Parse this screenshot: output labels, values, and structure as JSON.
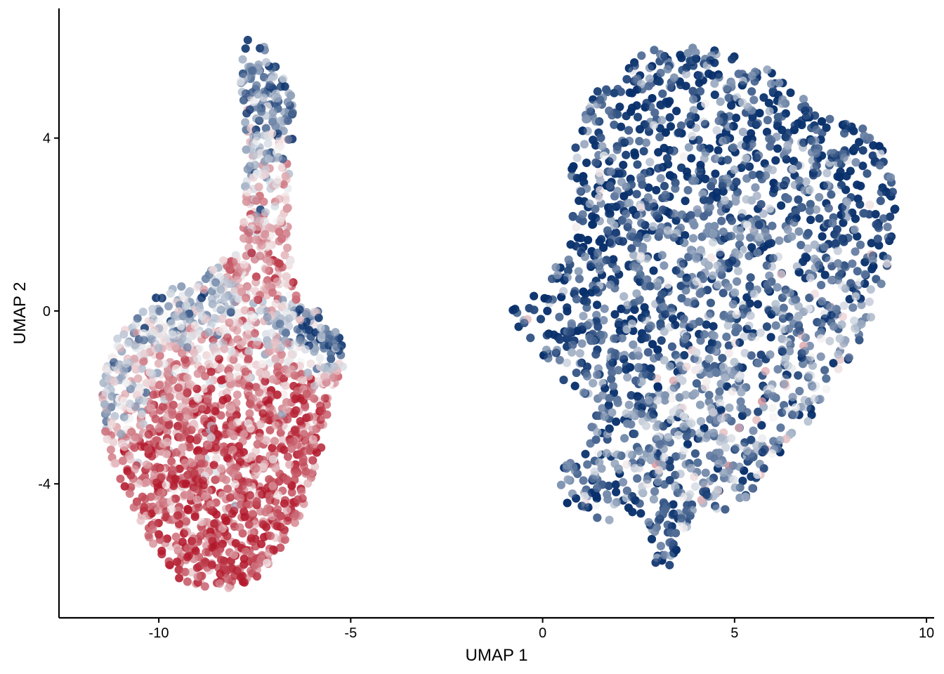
{
  "chart_data": {
    "type": "scatter",
    "title": "",
    "xlabel": "UMAP 1",
    "ylabel": "UMAP 2",
    "xlim": [
      -12.6,
      10.2
    ],
    "ylim": [
      -7.1,
      7.0
    ],
    "x_ticks": [
      -10,
      -5,
      0,
      5,
      10
    ],
    "x_tick_labels": [
      "-10",
      "-5",
      "0",
      "5",
      "10"
    ],
    "y_ticks": [
      -4,
      0,
      4
    ],
    "y_tick_labels": [
      "-4",
      "0",
      "4"
    ],
    "grid": false,
    "legend": "none",
    "point_alpha": 0.65,
    "color_scale": {
      "type": "diverging",
      "low": "#08306b",
      "mid": "#f7f7f7",
      "high": "#b2182b"
    },
    "clusters": [
      {
        "id": "left",
        "outline": [
          [
            -7.7,
            6.3
          ],
          [
            -7.3,
            6.2
          ],
          [
            -6.8,
            5.7
          ],
          [
            -6.5,
            4.9
          ],
          [
            -6.5,
            3.9
          ],
          [
            -6.6,
            2.8
          ],
          [
            -6.6,
            1.6
          ],
          [
            -6.5,
            0.8
          ],
          [
            -6.3,
            0.1
          ],
          [
            -5.8,
            0.0
          ],
          [
            -5.3,
            -0.5
          ],
          [
            -5.1,
            -1.2
          ],
          [
            -5.6,
            -2.1
          ],
          [
            -5.6,
            -2.6
          ],
          [
            -5.8,
            -3.4
          ],
          [
            -6.3,
            -4.7
          ],
          [
            -7.0,
            -5.8
          ],
          [
            -7.6,
            -6.3
          ],
          [
            -8.5,
            -6.5
          ],
          [
            -9.5,
            -6.2
          ],
          [
            -10.3,
            -5.2
          ],
          [
            -11.0,
            -4.0
          ],
          [
            -11.4,
            -2.9
          ],
          [
            -11.5,
            -1.6
          ],
          [
            -11.1,
            -0.6
          ],
          [
            -10.5,
            0.0
          ],
          [
            -9.8,
            0.5
          ],
          [
            -9.0,
            0.7
          ],
          [
            -8.3,
            1.2
          ],
          [
            -7.8,
            1.6
          ],
          [
            -7.8,
            2.5
          ],
          [
            -7.7,
            3.3
          ],
          [
            -7.8,
            4.5
          ],
          [
            -7.9,
            5.5
          ]
        ],
        "color_regions": [
          {
            "x": -7.2,
            "y": 5.4,
            "rx": 0.6,
            "ry": 1.0,
            "value": -0.7
          },
          {
            "x": -7.3,
            "y": 3.8,
            "rx": 0.6,
            "ry": 0.9,
            "value": -0.2
          },
          {
            "x": -7.0,
            "y": 2.2,
            "rx": 0.6,
            "ry": 0.8,
            "value": 0.3
          },
          {
            "x": -7.0,
            "y": 1.0,
            "rx": 0.6,
            "ry": 0.6,
            "value": 0.5
          },
          {
            "x": -9.8,
            "y": -0.2,
            "rx": 1.2,
            "ry": 0.6,
            "value": -0.4
          },
          {
            "x": -6.0,
            "y": -0.5,
            "rx": 0.8,
            "ry": 0.5,
            "value": -0.7
          },
          {
            "x": -11.0,
            "y": -1.6,
            "rx": 0.6,
            "ry": 0.9,
            "value": -0.2
          },
          {
            "x": -8.5,
            "y": -1.2,
            "rx": 1.6,
            "ry": 0.8,
            "value": 0.4
          },
          {
            "x": -8.3,
            "y": -3.0,
            "rx": 2.0,
            "ry": 1.1,
            "value": 0.65
          },
          {
            "x": -8.4,
            "y": -5.2,
            "rx": 1.4,
            "ry": 1.2,
            "value": 0.8
          }
        ]
      },
      {
        "id": "right",
        "outline": [
          [
            -1.0,
            0.0
          ],
          [
            -0.2,
            0.4
          ],
          [
            0.5,
            1.2
          ],
          [
            0.8,
            2.0
          ],
          [
            0.7,
            3.0
          ],
          [
            0.9,
            4.1
          ],
          [
            1.3,
            5.0
          ],
          [
            2.0,
            5.7
          ],
          [
            3.0,
            6.1
          ],
          [
            4.0,
            6.1
          ],
          [
            5.0,
            6.0
          ],
          [
            6.0,
            5.6
          ],
          [
            6.8,
            4.9
          ],
          [
            7.4,
            4.5
          ],
          [
            8.0,
            4.5
          ],
          [
            8.7,
            4.1
          ],
          [
            9.1,
            3.2
          ],
          [
            9.2,
            2.2
          ],
          [
            9.0,
            1.0
          ],
          [
            8.6,
            -0.2
          ],
          [
            7.8,
            -1.5
          ],
          [
            7.0,
            -2.5
          ],
          [
            6.2,
            -3.3
          ],
          [
            5.6,
            -3.9
          ],
          [
            5.4,
            -4.4
          ],
          [
            4.6,
            -4.7
          ],
          [
            4.0,
            -4.6
          ],
          [
            3.6,
            -5.3
          ],
          [
            3.4,
            -5.9
          ],
          [
            3.0,
            -6.0
          ],
          [
            2.7,
            -5.6
          ],
          [
            2.6,
            -4.9
          ],
          [
            2.0,
            -4.9
          ],
          [
            1.0,
            -4.7
          ],
          [
            0.4,
            -4.4
          ],
          [
            0.5,
            -3.6
          ],
          [
            1.1,
            -3.2
          ],
          [
            1.4,
            -2.3
          ],
          [
            1.0,
            -1.9
          ],
          [
            0.5,
            -1.6
          ],
          [
            -0.2,
            -0.8
          ]
        ],
        "color_regions": [
          {
            "x": 3.5,
            "y": 4.5,
            "rx": 2.5,
            "ry": 1.4,
            "value": -0.85
          },
          {
            "x": 7.5,
            "y": 3.0,
            "rx": 1.5,
            "ry": 1.3,
            "value": -0.8
          },
          {
            "x": 1.5,
            "y": 0.0,
            "rx": 1.5,
            "ry": 1.5,
            "value": -0.9
          },
          {
            "x": 4.8,
            "y": 0.6,
            "rx": 2.4,
            "ry": 1.6,
            "value": -0.65
          },
          {
            "x": 4.8,
            "y": -1.8,
            "rx": 2.4,
            "ry": 1.4,
            "value": -0.5
          },
          {
            "x": 1.4,
            "y": -4.2,
            "rx": 1.0,
            "ry": 0.6,
            "value": -0.6
          },
          {
            "x": 3.1,
            "y": -5.4,
            "rx": 0.6,
            "ry": 0.6,
            "value": -0.75
          }
        ]
      }
    ]
  }
}
